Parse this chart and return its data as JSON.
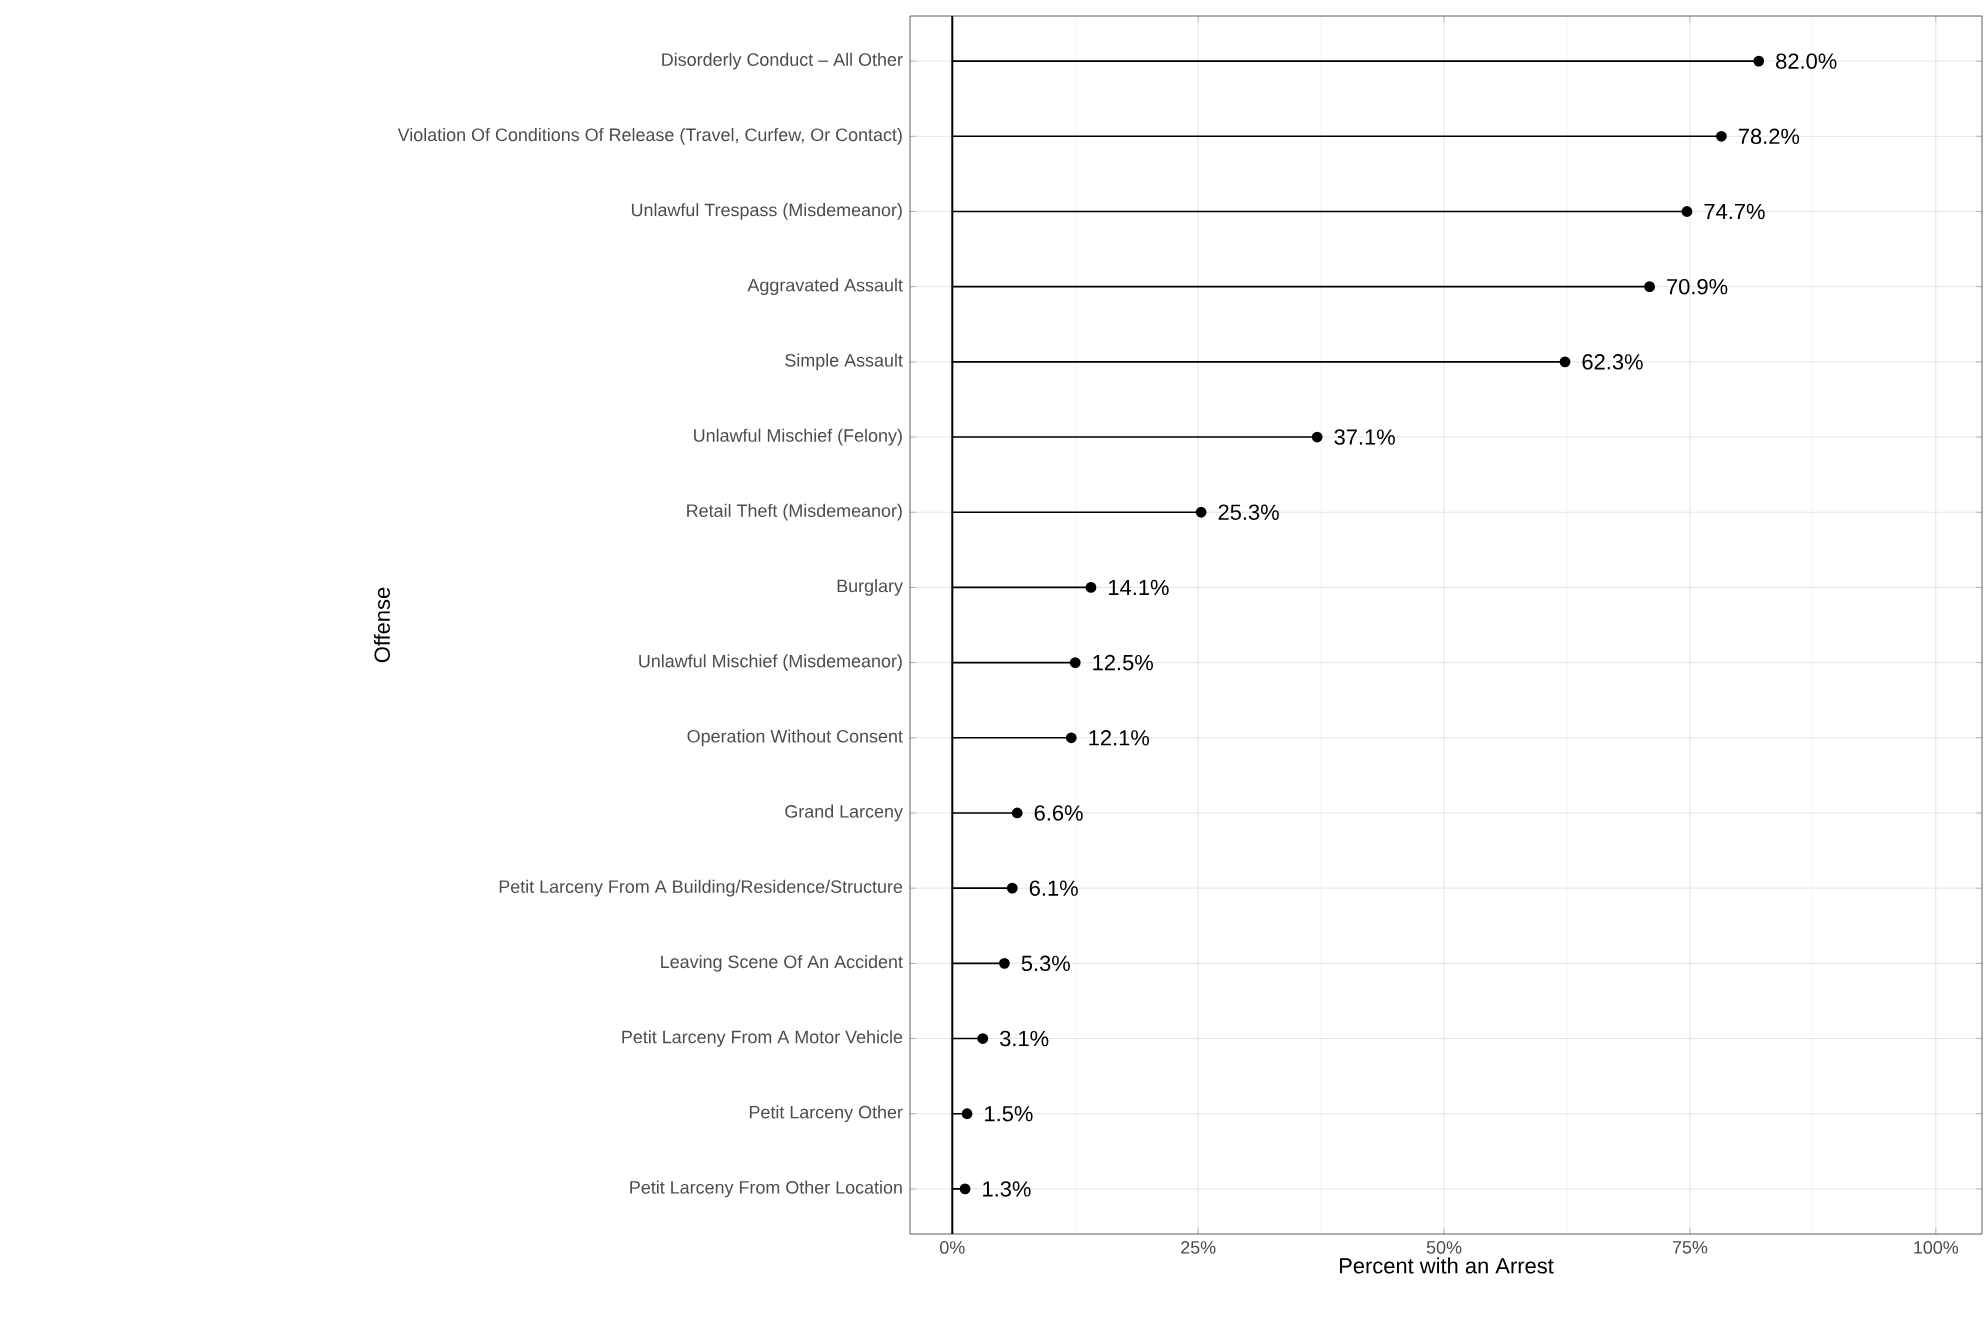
{
  "chart_data": {
    "type": "lollipop",
    "orientation": "horizontal",
    "xlabel": "Percent with an Arrest",
    "ylabel": "Offense",
    "categories": [
      "Disorderly Conduct – All Other",
      "Violation Of Conditions Of Release (Travel, Curfew, Or Contact)",
      "Unlawful Trespass (Misdemeanor)",
      "Aggravated Assault",
      "Simple Assault",
      "Unlawful Mischief (Felony)",
      "Retail Theft (Misdemeanor)",
      "Burglary",
      "Unlawful Mischief (Misdemeanor)",
      "Operation Without Consent",
      "Grand Larceny",
      "Petit Larceny From A Building/Residence/Structure",
      "Leaving Scene Of An Accident",
      "Petit Larceny From A Motor Vehicle",
      "Petit Larceny Other",
      "Petit Larceny From Other Location"
    ],
    "values": [
      82.0,
      78.2,
      74.7,
      70.9,
      62.3,
      37.1,
      25.3,
      14.1,
      12.5,
      12.1,
      6.6,
      6.1,
      5.3,
      3.1,
      1.5,
      1.3
    ],
    "value_labels": [
      "82.0%",
      "78.2%",
      "74.7%",
      "70.9%",
      "62.3%",
      "37.1%",
      "25.3%",
      "14.1%",
      "12.5%",
      "12.1%",
      "6.6%",
      "6.1%",
      "5.3%",
      "3.1%",
      "1.5%",
      "1.3%"
    ],
    "color": "#000000",
    "marker": "circle",
    "xlim": [
      -4.3,
      104.7
    ],
    "xticks": [
      {
        "value": 0,
        "label": "0%"
      },
      {
        "value": 25,
        "label": "25%"
      },
      {
        "value": 50,
        "label": "50%"
      },
      {
        "value": 75,
        "label": "75%"
      },
      {
        "value": 100,
        "label": "100%"
      }
    ],
    "grid": true,
    "ref_lines": [
      {
        "axis": "x",
        "value": 0,
        "color": "#000000"
      }
    ]
  }
}
